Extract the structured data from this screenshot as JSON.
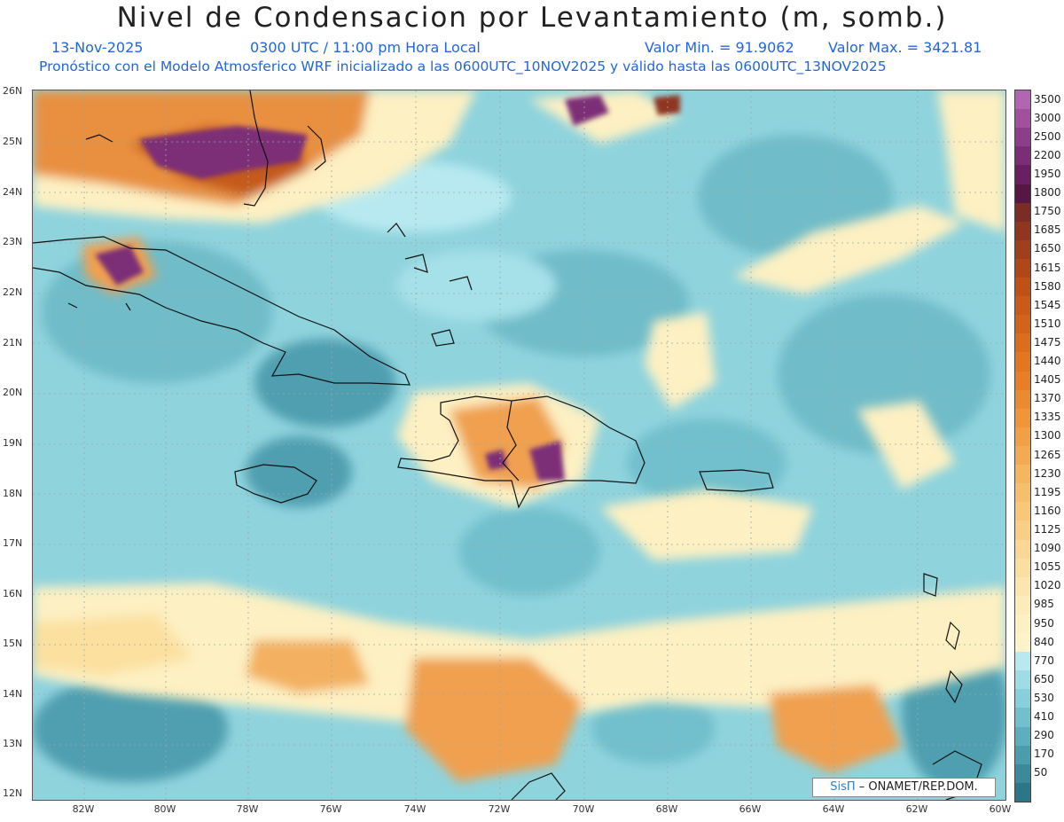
{
  "title": "Nivel de Condensacion por Levantamiento (m, somb.)",
  "header": {
    "date": "13-Nov-2025",
    "time": "0300 UTC / 11:00 pm Hora Local",
    "min": "Valor Min. = 91.9062",
    "max": "Valor Max. = 3421.81",
    "model_line": "Pronóstico con el Modelo Atmosferico WRF inicializado a las 0600UTC_10NOV2025 y válido hasta las  0600UTC_13NOV2025"
  },
  "map": {
    "lat_labels": [
      "26N",
      "25N",
      "24N",
      "23N",
      "22N",
      "21N",
      "20N",
      "19N",
      "18N",
      "17N",
      "16N",
      "15N",
      "14N",
      "13N",
      "12N"
    ],
    "lon_labels": [
      "82W",
      "80W",
      "78W",
      "76W",
      "74W",
      "72W",
      "70W",
      "68W",
      "66W",
      "64W",
      "62W",
      "60W"
    ]
  },
  "colorbar": {
    "levels": [
      {
        "label": "3500",
        "color": "#b266b2"
      },
      {
        "label": "3000",
        "color": "#a24f9e"
      },
      {
        "label": "2500",
        "color": "#8e3d8a"
      },
      {
        "label": "2200",
        "color": "#7b2d77"
      },
      {
        "label": "1950",
        "color": "#6a1f62"
      },
      {
        "label": "1800",
        "color": "#561646"
      },
      {
        "label": "1750",
        "color": "#7a2c25"
      },
      {
        "label": "1685",
        "color": "#8f3520"
      },
      {
        "label": "1650",
        "color": "#a13e1c"
      },
      {
        "label": "1615",
        "color": "#b04718"
      },
      {
        "label": "1580",
        "color": "#bf5117"
      },
      {
        "label": "1545",
        "color": "#c95a18"
      },
      {
        "label": "1510",
        "color": "#d2631a"
      },
      {
        "label": "1475",
        "color": "#db6d1d"
      },
      {
        "label": "1440",
        "color": "#e27621"
      },
      {
        "label": "1405",
        "color": "#e87f27"
      },
      {
        "label": "1370",
        "color": "#ec8a30"
      },
      {
        "label": "1335",
        "color": "#f0953a"
      },
      {
        "label": "1300",
        "color": "#f2a046"
      },
      {
        "label": "1265",
        "color": "#f4aa52"
      },
      {
        "label": "1230",
        "color": "#f6b55f"
      },
      {
        "label": "1195",
        "color": "#f7be6c"
      },
      {
        "label": "1160",
        "color": "#f8c77a"
      },
      {
        "label": "1125",
        "color": "#f9cf87"
      },
      {
        "label": "1090",
        "color": "#fad795"
      },
      {
        "label": "1055",
        "color": "#fbdea2"
      },
      {
        "label": "1020",
        "color": "#fce5ae"
      },
      {
        "label": "985",
        "color": "#fdebb9"
      },
      {
        "label": "950",
        "color": "#fdf0c2"
      },
      {
        "label": "840",
        "color": "#fdf3c8"
      },
      {
        "label": "770",
        "color": "#b8e9f0"
      },
      {
        "label": "650",
        "color": "#9edde6"
      },
      {
        "label": "530",
        "color": "#87cfda"
      },
      {
        "label": "410",
        "color": "#72c0cd"
      },
      {
        "label": "290",
        "color": "#5eafbe"
      },
      {
        "label": "170",
        "color": "#4b9dae"
      },
      {
        "label": "50",
        "color": "#3a8a9c"
      },
      {
        "label": "",
        "color": "#2b7789"
      }
    ]
  },
  "credit": {
    "brand": "SisΠ",
    "text": "– ONAMET/REP.DOM."
  },
  "colors": {
    "ocean_base": "#8fd3dd",
    "low_teal": "#5fb0be",
    "deep_teal": "#3f8ea0",
    "light_cyan": "#b8e9f0",
    "yellow": "#fdf0c2",
    "orange": "#e28a3a",
    "dark_orange": "#c45a1a",
    "purple": "#7b2d77"
  }
}
